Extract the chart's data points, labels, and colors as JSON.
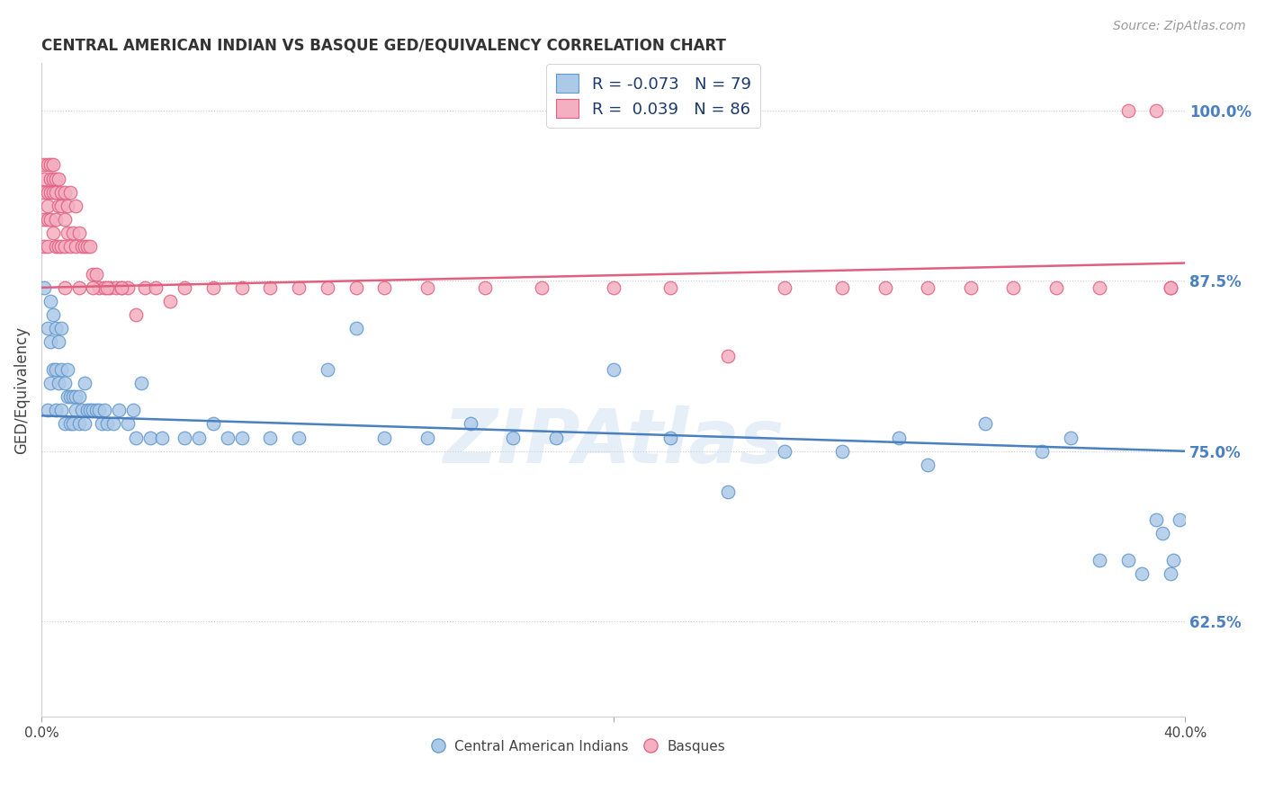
{
  "title": "CENTRAL AMERICAN INDIAN VS BASQUE GED/EQUIVALENCY CORRELATION CHART",
  "source": "Source: ZipAtlas.com",
  "ylabel": "GED/Equivalency",
  "legend_blue_r": "-0.073",
  "legend_blue_n": "79",
  "legend_pink_r": "0.039",
  "legend_pink_n": "86",
  "legend_blue_label": "Central American Indians",
  "legend_pink_label": "Basques",
  "watermark": "ZIPAtlas",
  "blue_color": "#adc9e8",
  "pink_color": "#f4afc0",
  "blue_edge_color": "#6098cc",
  "pink_edge_color": "#e06080",
  "blue_line_color": "#4a7fc0",
  "pink_line_color": "#e06080",
  "background_color": "#ffffff",
  "xlim": [
    0.0,
    0.4
  ],
  "ylim": [
    0.555,
    1.035
  ],
  "ytick_vals": [
    0.625,
    0.75,
    0.875,
    1.0
  ],
  "ytick_labels": [
    "62.5%",
    "75.0%",
    "87.5%",
    "100.0%"
  ],
  "blue_trend_y0": 0.776,
  "blue_trend_y1": 0.75,
  "pink_trend_y0": 0.87,
  "pink_trend_y1": 0.888,
  "blue_x": [
    0.001,
    0.002,
    0.002,
    0.003,
    0.003,
    0.003,
    0.004,
    0.004,
    0.005,
    0.005,
    0.005,
    0.006,
    0.006,
    0.007,
    0.007,
    0.007,
    0.008,
    0.008,
    0.009,
    0.009,
    0.01,
    0.01,
    0.011,
    0.011,
    0.012,
    0.012,
    0.013,
    0.013,
    0.014,
    0.015,
    0.015,
    0.016,
    0.017,
    0.018,
    0.019,
    0.02,
    0.021,
    0.022,
    0.023,
    0.025,
    0.027,
    0.03,
    0.032,
    0.033,
    0.035,
    0.038,
    0.042,
    0.05,
    0.055,
    0.06,
    0.065,
    0.07,
    0.08,
    0.09,
    0.1,
    0.11,
    0.12,
    0.135,
    0.15,
    0.165,
    0.18,
    0.2,
    0.22,
    0.24,
    0.26,
    0.28,
    0.3,
    0.31,
    0.33,
    0.35,
    0.36,
    0.37,
    0.38,
    0.385,
    0.39,
    0.392,
    0.395,
    0.396,
    0.398
  ],
  "blue_y": [
    0.87,
    0.84,
    0.78,
    0.86,
    0.83,
    0.8,
    0.85,
    0.81,
    0.84,
    0.81,
    0.78,
    0.83,
    0.8,
    0.84,
    0.81,
    0.78,
    0.8,
    0.77,
    0.81,
    0.79,
    0.79,
    0.77,
    0.79,
    0.77,
    0.79,
    0.78,
    0.79,
    0.77,
    0.78,
    0.8,
    0.77,
    0.78,
    0.78,
    0.78,
    0.78,
    0.78,
    0.77,
    0.78,
    0.77,
    0.77,
    0.78,
    0.77,
    0.78,
    0.76,
    0.8,
    0.76,
    0.76,
    0.76,
    0.76,
    0.77,
    0.76,
    0.76,
    0.76,
    0.76,
    0.81,
    0.84,
    0.76,
    0.76,
    0.77,
    0.76,
    0.76,
    0.81,
    0.76,
    0.72,
    0.75,
    0.75,
    0.76,
    0.74,
    0.77,
    0.75,
    0.76,
    0.67,
    0.67,
    0.66,
    0.7,
    0.69,
    0.66,
    0.67,
    0.7
  ],
  "pink_x": [
    0.001,
    0.001,
    0.001,
    0.001,
    0.001,
    0.002,
    0.002,
    0.002,
    0.002,
    0.002,
    0.003,
    0.003,
    0.003,
    0.003,
    0.004,
    0.004,
    0.004,
    0.004,
    0.005,
    0.005,
    0.005,
    0.005,
    0.006,
    0.006,
    0.006,
    0.007,
    0.007,
    0.007,
    0.008,
    0.008,
    0.008,
    0.009,
    0.009,
    0.01,
    0.01,
    0.011,
    0.012,
    0.012,
    0.013,
    0.014,
    0.015,
    0.016,
    0.017,
    0.018,
    0.019,
    0.02,
    0.022,
    0.024,
    0.026,
    0.028,
    0.03,
    0.033,
    0.036,
    0.04,
    0.045,
    0.05,
    0.06,
    0.07,
    0.08,
    0.09,
    0.1,
    0.11,
    0.12,
    0.135,
    0.155,
    0.175,
    0.2,
    0.22,
    0.24,
    0.26,
    0.28,
    0.295,
    0.31,
    0.325,
    0.34,
    0.355,
    0.37,
    0.38,
    0.39,
    0.395,
    0.395,
    0.008,
    0.013,
    0.018,
    0.023,
    0.028
  ],
  "pink_y": [
    0.96,
    0.95,
    0.94,
    0.92,
    0.9,
    0.96,
    0.94,
    0.93,
    0.92,
    0.9,
    0.96,
    0.95,
    0.94,
    0.92,
    0.96,
    0.95,
    0.94,
    0.91,
    0.95,
    0.94,
    0.92,
    0.9,
    0.95,
    0.93,
    0.9,
    0.94,
    0.93,
    0.9,
    0.94,
    0.92,
    0.9,
    0.93,
    0.91,
    0.94,
    0.9,
    0.91,
    0.93,
    0.9,
    0.91,
    0.9,
    0.9,
    0.9,
    0.9,
    0.88,
    0.88,
    0.87,
    0.87,
    0.87,
    0.87,
    0.87,
    0.87,
    0.85,
    0.87,
    0.87,
    0.86,
    0.87,
    0.87,
    0.87,
    0.87,
    0.87,
    0.87,
    0.87,
    0.87,
    0.87,
    0.87,
    0.87,
    0.87,
    0.87,
    0.82,
    0.87,
    0.87,
    0.87,
    0.87,
    0.87,
    0.87,
    0.87,
    0.87,
    1.0,
    1.0,
    0.87,
    0.87,
    0.87,
    0.87,
    0.87,
    0.87,
    0.87
  ]
}
